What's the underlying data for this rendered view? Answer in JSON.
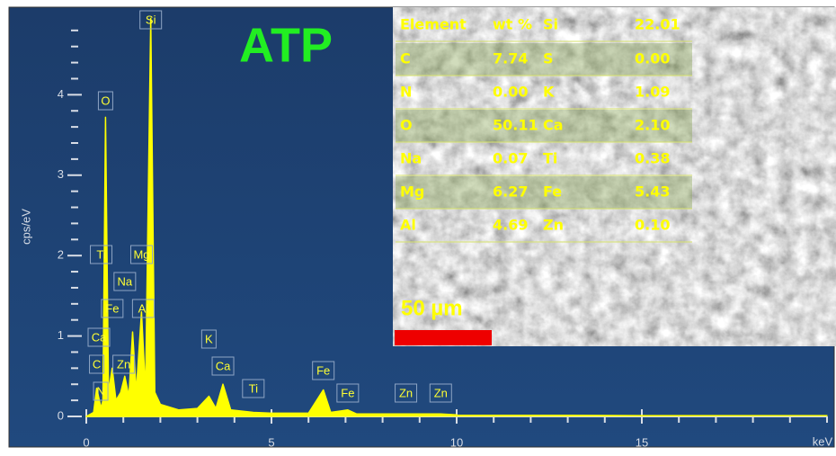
{
  "chart_data": {
    "type": "area",
    "title": "ATP",
    "xlabel": "keV",
    "ylabel": "cps/eV",
    "color": "#ffff00",
    "x": [
      0,
      0.2,
      0.28,
      0.4,
      0.45,
      0.52,
      0.6,
      0.7,
      0.8,
      0.93,
      1.04,
      1.15,
      1.25,
      1.35,
      1.49,
      1.6,
      1.74,
      1.85,
      2.0,
      2.5,
      3.0,
      3.31,
      3.5,
      3.69,
      3.9,
      4.51,
      5.0,
      6.0,
      6.4,
      6.6,
      7.06,
      7.3,
      8.0,
      8.63,
      9.57,
      10,
      15,
      20
    ],
    "values": [
      0,
      0.05,
      0.35,
      0.1,
      0.2,
      3.72,
      0.3,
      0.6,
      0.2,
      0.3,
      0.5,
      0.25,
      1.05,
      0.3,
      1.3,
      0.3,
      4.95,
      0.3,
      0.15,
      0.08,
      0.1,
      0.25,
      0.1,
      0.4,
      0.08,
      0.05,
      0.04,
      0.04,
      0.33,
      0.05,
      0.08,
      0.03,
      0.03,
      0.03,
      0.03,
      0.02,
      0.01,
      0.01
    ],
    "xlim": [
      0,
      20
    ],
    "ylim": [
      0,
      5.1
    ],
    "xticks": [
      0,
      5,
      10,
      15
    ],
    "yticks": [
      0,
      1,
      2,
      3,
      4
    ],
    "xminorticks": [
      1,
      2,
      3,
      4,
      6,
      7,
      8,
      9,
      11,
      12,
      13,
      14,
      16,
      17,
      18,
      19,
      20
    ],
    "yminorticks": [
      0.2,
      0.4,
      0.6,
      0.8,
      1.2,
      1.4,
      1.6,
      1.8,
      2.2,
      2.4,
      2.6,
      2.8,
      3.2,
      3.4,
      3.6,
      3.8,
      4.2,
      4.4,
      4.6,
      4.8
    ],
    "annotations": [
      {
        "text": "Si",
        "x": 1.74
      },
      {
        "text": "O",
        "x": 0.52
      },
      {
        "text": "Ti",
        "x": 0.45
      },
      {
        "text": "Mg",
        "x": 1.25
      },
      {
        "text": "Na",
        "x": 1.04
      },
      {
        "text": "Fe",
        "x": 0.7
      },
      {
        "text": "Al",
        "x": 1.49
      },
      {
        "text": "Ca",
        "x": 0.34
      },
      {
        "text": "C",
        "x": 0.28
      },
      {
        "text": "Zn",
        "x": 1.01
      },
      {
        "text": "N",
        "x": 0.39
      },
      {
        "text": "K",
        "x": 3.31
      },
      {
        "text": "Ca",
        "x": 3.69
      },
      {
        "text": "Ti",
        "x": 4.51
      },
      {
        "text": "Fe",
        "x": 6.4
      },
      {
        "text": "Fe",
        "x": 7.06
      },
      {
        "text": "Zn",
        "x": 8.63
      },
      {
        "text": "Zn",
        "x": 9.57
      }
    ]
  },
  "table": {
    "header": [
      "Element",
      "wt %",
      "Si",
      "22.01"
    ],
    "rows": [
      [
        "C",
        "7.74",
        "S",
        "0.00"
      ],
      [
        "N",
        "0.00",
        "K",
        "1.09"
      ],
      [
        "O",
        "50.11",
        "Ca",
        "2.10"
      ],
      [
        "Na",
        "0.07",
        "Ti",
        "0.38"
      ],
      [
        "Mg",
        "6.27",
        "Fe",
        "5.43"
      ],
      [
        "Al",
        "4.69",
        "Zn",
        "0.10"
      ]
    ]
  },
  "scale_bar": "50 µm"
}
